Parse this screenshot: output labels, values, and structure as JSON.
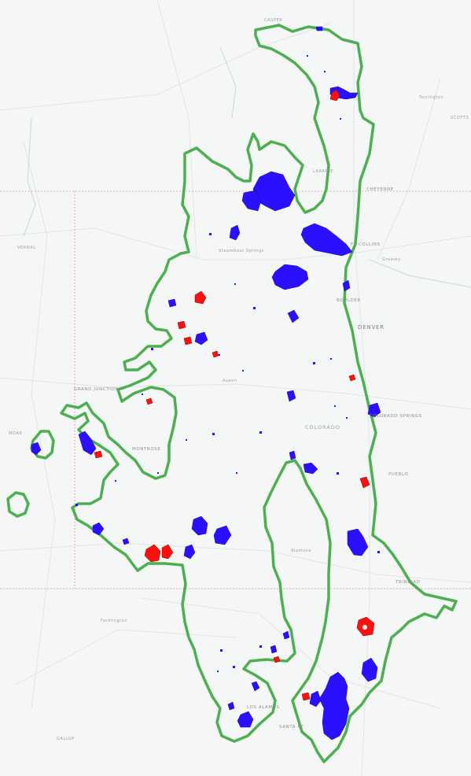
{
  "map": {
    "labels": {
      "casper": "CASPER",
      "torrington": "Torrington",
      "scottsbluff": "SCOTTS",
      "laramie": "LARAMIE",
      "cheyenne": "CHEYENNE",
      "vernal": "VERNAL",
      "fort_collins": "FT COLLINS",
      "greeley": "Greeley",
      "steamboat": "Steamboat Springs",
      "boulder": "BOULDER",
      "denver": "DENVER",
      "aspen": "Aspen",
      "grand_junction": "GRAND JUNCTION",
      "colorado_springs": "COLORADO SPRINGS",
      "colorado": "COLORADO",
      "moab": "MOAB",
      "montrose": "MONTROSE",
      "pueblo": "PUEBLO",
      "alamosa": "Alamosa",
      "trinidad": "TRINIDAD",
      "farmington": "Farmington",
      "los_alamos": "LOS ALAMOS",
      "santa_fe": "SANTA FE",
      "gallup": "GALLUP"
    },
    "colors": {
      "background": "#f5f6f6",
      "boundary": "#4caf50",
      "fire_blue": "#2b10ff",
      "fire_red": "#ff1010",
      "road": "#e3e5e6",
      "water": "#d2d9de",
      "state_line": "#e07b6b"
    }
  }
}
